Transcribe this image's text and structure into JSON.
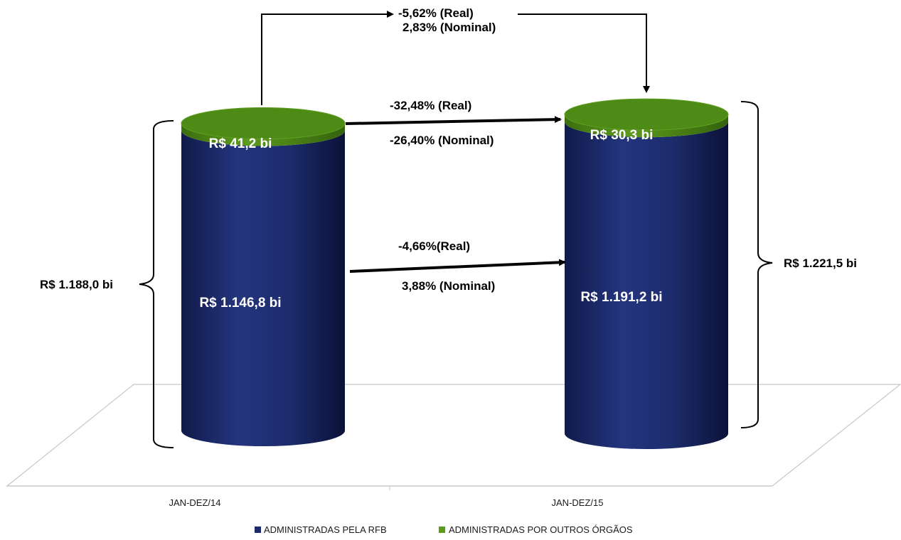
{
  "chart_data": {
    "type": "bar",
    "style": "3d-cylinder-stacked",
    "categories": [
      "JAN-DEZ/14",
      "JAN-DEZ/15"
    ],
    "series": [
      {
        "name": "ADMINISTRADAS PELA RFB",
        "values": [
          1146.8,
          1191.2
        ],
        "color": "#1b2a6b",
        "labels": [
          "R$ 1.146,8  bi",
          "R$ 1.191,2  bi"
        ]
      },
      {
        "name": "ADMINISTRADAS POR OUTROS ÓRGÃOS",
        "values": [
          41.2,
          30.3
        ],
        "color": "#4e8a16",
        "labels": [
          "R$ 41,2  bi",
          "R$ 30,3  bi"
        ]
      }
    ],
    "totals": [
      "R$ 1.188,0  bi",
      "R$ 1.221,5  bi"
    ],
    "annotations": {
      "total_change": [
        "-5,62% (Real)",
        "2,83% (Nominal)"
      ],
      "outros_change": [
        "-32,48% (Real)",
        "-26,40% (Nominal)"
      ],
      "rfb_change": [
        "-4,66%(Real)",
        "3,88% (Nominal)"
      ]
    },
    "legend_position": "bottom",
    "grid": false
  }
}
